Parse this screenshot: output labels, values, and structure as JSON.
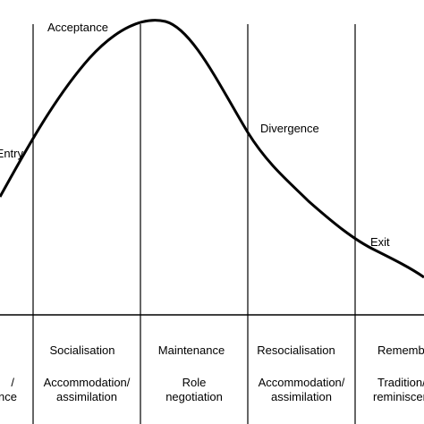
{
  "curve_labels": {
    "entry": "Entry",
    "acceptance": "Acceptance",
    "divergence": "Divergence",
    "exit": "Exit"
  },
  "phases": [
    {
      "name": "",
      "desc_line1": "/",
      "desc_line2": "ance"
    },
    {
      "name": "Socialisation",
      "desc_line1": "Accommodation/",
      "desc_line2": "assimilation"
    },
    {
      "name": "Maintenance",
      "desc_line1": "Role",
      "desc_line2": "negotiation"
    },
    {
      "name": "Resocialisation",
      "desc_line1": "Accommodation/",
      "desc_line2": "assimilation"
    },
    {
      "name": "Remembrance",
      "desc_line1": "Tradition/",
      "desc_line2": "reminiscence"
    }
  ]
}
